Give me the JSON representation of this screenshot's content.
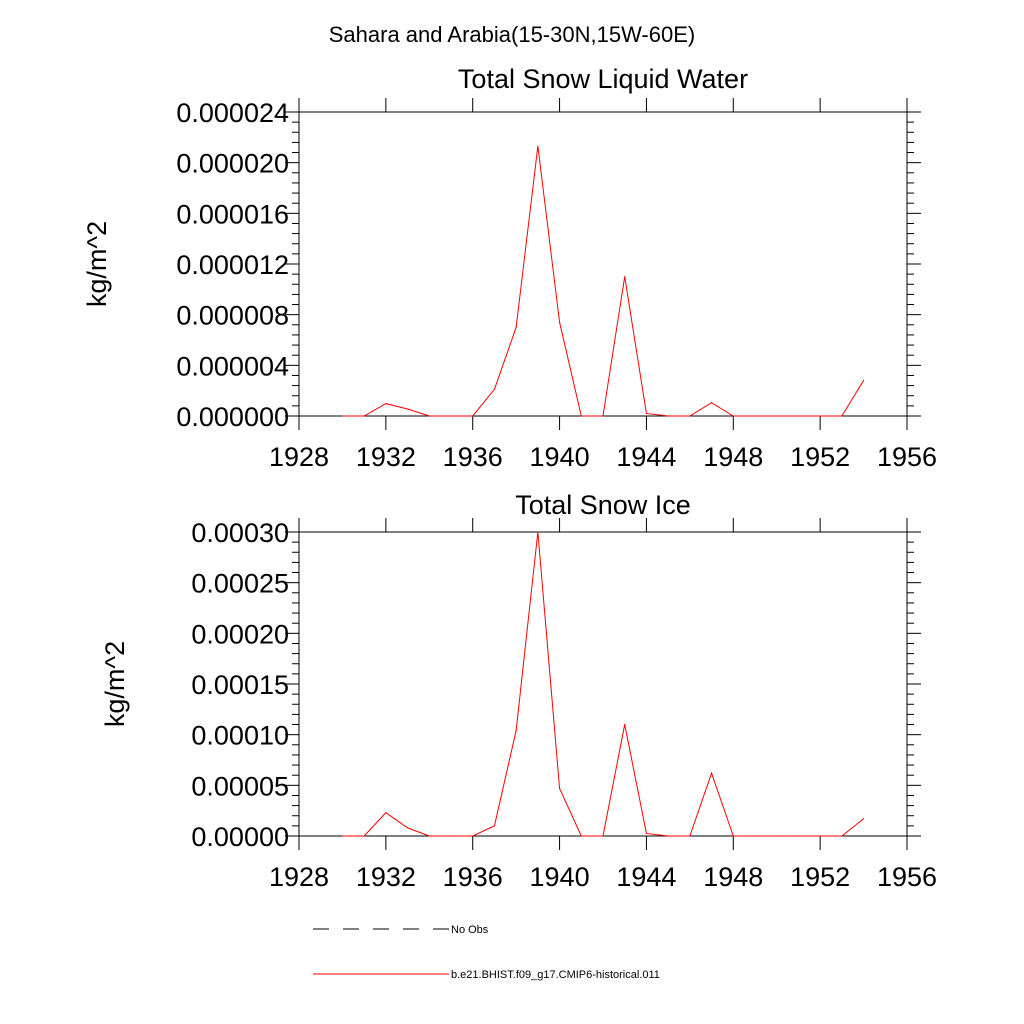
{
  "figure": {
    "supertitle": "Sahara and Arabia(15-30N,15W-60E)"
  },
  "legend": [
    {
      "label": "No Obs",
      "color": "#000000",
      "dash": "dashed"
    },
    {
      "label": "b.e21.BHIST.f09_g17.CMIP6-historical.011",
      "color": "#ff0000",
      "dash": "solid"
    }
  ],
  "chart_data": [
    {
      "type": "line",
      "title": "Total Snow Liquid Water",
      "xlabel": "",
      "ylabel": "kg/m^2",
      "xlim": [
        1928,
        1956
      ],
      "ylim": [
        0,
        2.4e-05
      ],
      "xticks": [
        1928,
        1932,
        1936,
        1940,
        1944,
        1948,
        1952,
        1956
      ],
      "xtick_labels": [
        "1928",
        "1932",
        "1936",
        "1940",
        "1944",
        "1948",
        "1952",
        "1956"
      ],
      "yticks": [
        0,
        4e-06,
        8e-06,
        1.2e-05,
        1.6e-05,
        2e-05,
        2.4e-05
      ],
      "ytick_labels": [
        "0.000000",
        "0.000004",
        "0.000008",
        "0.000012",
        "0.000016",
        "0.000020",
        "0.000024"
      ],
      "grid": false,
      "series": [
        {
          "name": "b.e21.BHIST.f09_g17.CMIP6-historical.011",
          "color": "#ff0000",
          "x": [
            1930,
            1931,
            1932,
            1933,
            1934,
            1935,
            1936,
            1937,
            1938,
            1939,
            1940,
            1941,
            1942,
            1943,
            1944,
            1945,
            1946,
            1947,
            1948,
            1949,
            1950,
            1951,
            1952,
            1953,
            1954
          ],
          "y": [
            0,
            0,
            9.8e-07,
            5.5e-07,
            0,
            0,
            0,
            2.1e-06,
            7e-06,
            2.13e-05,
            7.4e-06,
            0,
            0,
            1.1e-05,
            2e-07,
            0,
            0,
            1.05e-06,
            0,
            0,
            0,
            0,
            0,
            0,
            2.8e-06
          ]
        }
      ]
    },
    {
      "type": "line",
      "title": "Total Snow Ice",
      "xlabel": "",
      "ylabel": "kg/m^2",
      "xlim": [
        1928,
        1956
      ],
      "ylim": [
        0,
        0.0003
      ],
      "xticks": [
        1928,
        1932,
        1936,
        1940,
        1944,
        1948,
        1952,
        1956
      ],
      "xtick_labels": [
        "1928",
        "1932",
        "1936",
        "1940",
        "1944",
        "1948",
        "1952",
        "1956"
      ],
      "yticks": [
        0,
        5e-05,
        0.0001,
        0.00015,
        0.0002,
        0.00025,
        0.0003
      ],
      "ytick_labels": [
        "0.00000",
        "0.00005",
        "0.00010",
        "0.00015",
        "0.00020",
        "0.00025",
        "0.00030"
      ],
      "grid": false,
      "series": [
        {
          "name": "b.e21.BHIST.f09_g17.CMIP6-historical.011",
          "color": "#ff0000",
          "x": [
            1930,
            1931,
            1932,
            1933,
            1934,
            1935,
            1936,
            1937,
            1938,
            1939,
            1940,
            1941,
            1942,
            1943,
            1944,
            1945,
            1946,
            1947,
            1948,
            1949,
            1950,
            1951,
            1952,
            1953,
            1954
          ],
          "y": [
            0,
            0,
            2.3e-05,
            8e-06,
            0,
            0,
            0,
            1e-05,
            0.000104,
            0.0003,
            4.7e-05,
            0,
            0,
            0.00011,
            2.5e-06,
            0,
            0,
            6.2e-05,
            0,
            0,
            0,
            0,
            0,
            0,
            1.7e-05
          ]
        }
      ]
    }
  ]
}
